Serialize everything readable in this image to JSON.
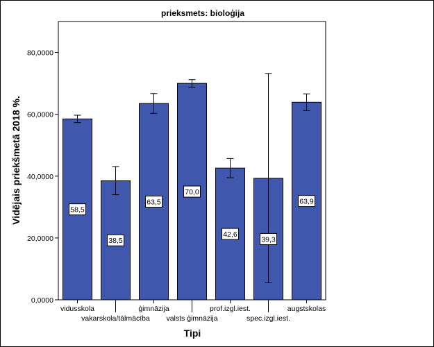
{
  "chart_data": {
    "type": "bar",
    "title": "prieksmets: bioloģija",
    "xlabel": "Tipi",
    "ylabel": "Vidējais priekšmetā 2018 %.",
    "ylim": [
      0,
      90
    ],
    "yticks": [
      "0,0000",
      "20,0000",
      "40,0000",
      "60,0000",
      "80,0000"
    ],
    "ytick_values": [
      0,
      20,
      40,
      60,
      80
    ],
    "grid": false,
    "bar_color": "#3f58ad",
    "categories": [
      "vidusskola",
      "vakarskola/tālmācība",
      "ģimnāzija",
      "valsts ģimnāzija",
      "prof.izgl.iest.",
      "spec.izgl.iest.",
      "augstskolas"
    ],
    "values": [
      58.5,
      38.5,
      63.5,
      70.0,
      42.6,
      39.3,
      63.9
    ],
    "value_labels": [
      "58,5",
      "38,5",
      "63,5",
      "70,0",
      "42,6",
      "39,3",
      "63,9"
    ],
    "error_low": [
      57.3,
      34.0,
      60.3,
      68.7,
      39.5,
      5.5,
      61.2
    ],
    "error_high": [
      59.7,
      43.1,
      66.7,
      71.2,
      45.7,
      73.2,
      66.6
    ]
  }
}
